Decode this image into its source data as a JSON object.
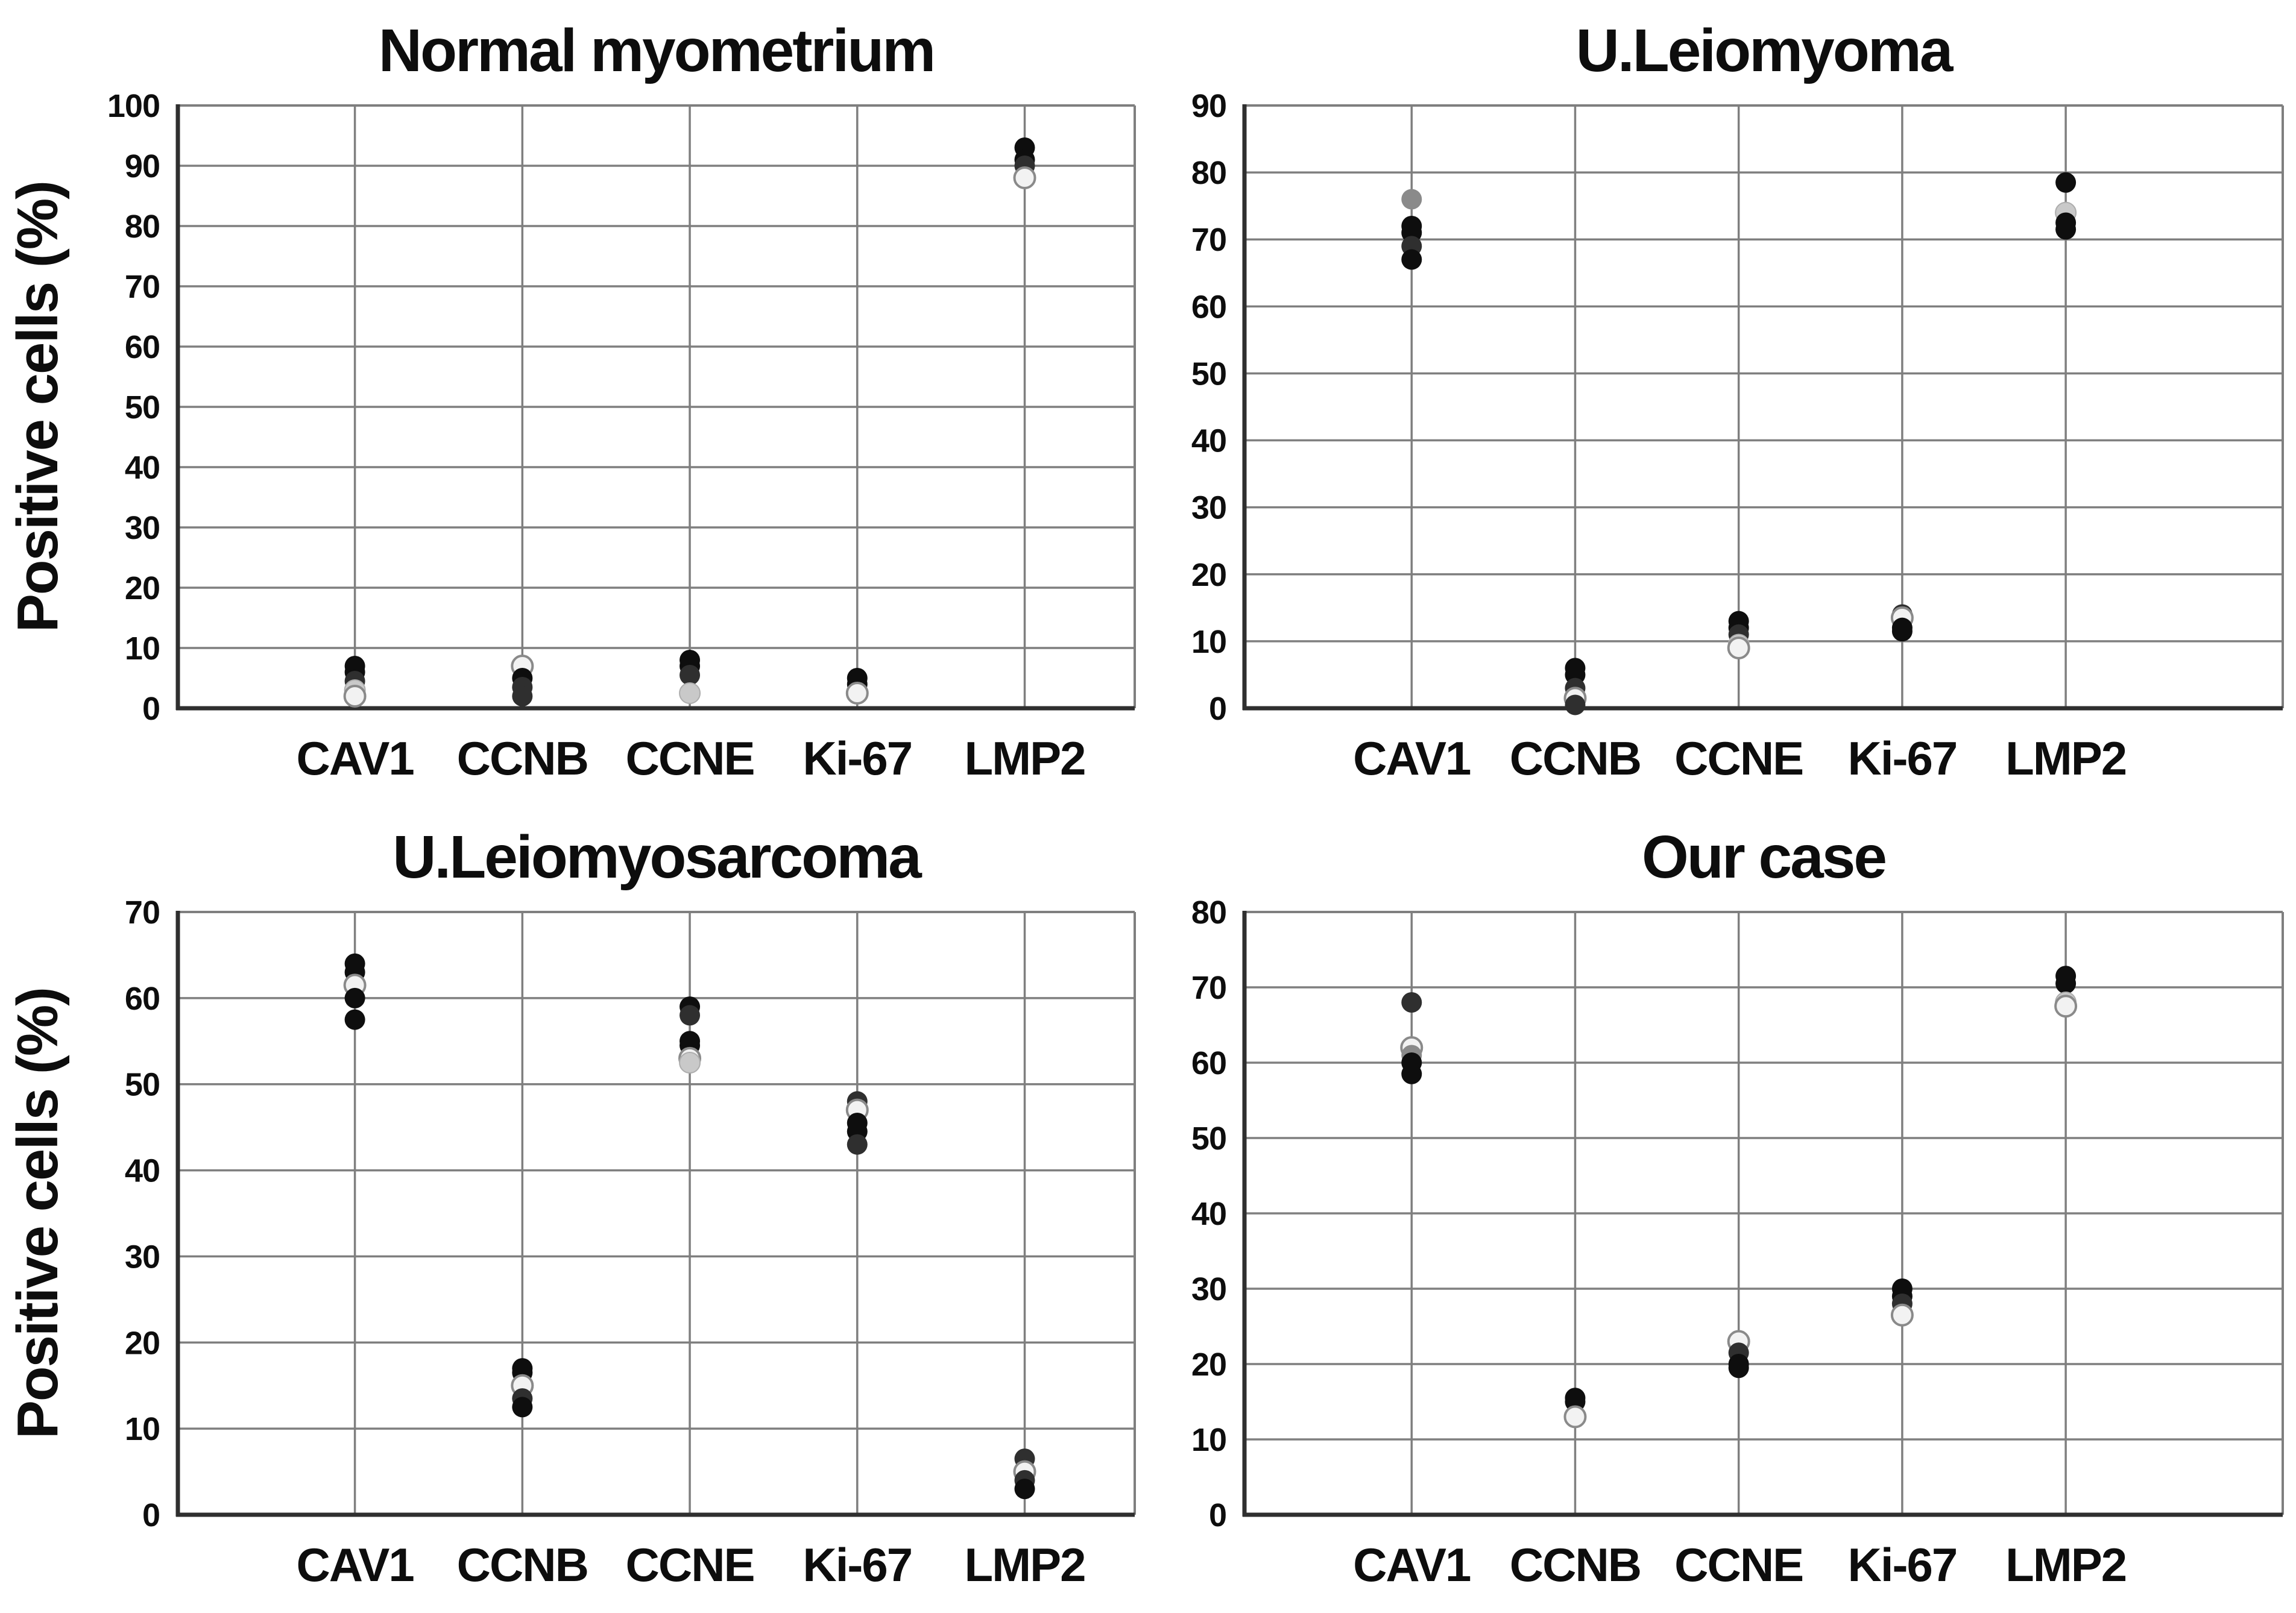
{
  "figure": {
    "ylabel": "Positive cells (%)"
  },
  "palette": {
    "black": "#0e0e0e",
    "dark": "#2f2f2f",
    "gray": "#8a8a8a",
    "light": "#c9c9c9",
    "white": "#f2f2f2",
    "white_stroke": "#8a8a8a",
    "gridline": "#7f7f7f",
    "axis": "#2f2f2f",
    "text": "#0d0d0d"
  },
  "chart_data": [
    {
      "type": "scatter",
      "title": "Normal myometrium",
      "ylabel": "Positive cells (%)",
      "xlabel": "",
      "ylim": [
        0,
        100
      ],
      "ytick_step": 10,
      "yticks": [
        0,
        10,
        20,
        30,
        40,
        50,
        60,
        70,
        80,
        90,
        100
      ],
      "grid": true,
      "legend": "none",
      "categories": [
        "CAV1",
        "CCNB",
        "CCNE",
        "Ki-67",
        "LMP2"
      ],
      "points": {
        "CAV1": [
          [
            7,
            "black"
          ],
          [
            6,
            "black"
          ],
          [
            4.5,
            "dark"
          ],
          [
            3,
            "light"
          ],
          [
            2,
            "white"
          ]
        ],
        "CCNB": [
          [
            7,
            "white"
          ],
          [
            5,
            "black"
          ],
          [
            3.5,
            "dark"
          ],
          [
            2,
            "dark"
          ]
        ],
        "CCNE": [
          [
            8,
            "black"
          ],
          [
            7,
            "black"
          ],
          [
            5.5,
            "dark"
          ],
          [
            2.5,
            "light"
          ]
        ],
        "Ki-67": [
          [
            5,
            "black"
          ],
          [
            4,
            "black"
          ],
          [
            2.5,
            "white"
          ]
        ],
        "LMP2": [
          [
            93,
            "black"
          ],
          [
            91,
            "black"
          ],
          [
            90,
            "dark"
          ],
          [
            88,
            "white"
          ]
        ]
      }
    },
    {
      "type": "scatter",
      "title": "U.Leiomyoma",
      "ylabel": "",
      "xlabel": "",
      "ylim": [
        0,
        90
      ],
      "ytick_step": 10,
      "yticks": [
        0,
        10,
        20,
        30,
        40,
        50,
        60,
        70,
        80,
        90
      ],
      "grid": true,
      "legend": "none",
      "categories": [
        "CAV1",
        "CCNB",
        "CCNE",
        "Ki-67",
        "LMP2"
      ],
      "points": {
        "CAV1": [
          [
            76,
            "gray"
          ],
          [
            72,
            "black"
          ],
          [
            71,
            "black"
          ],
          [
            69,
            "dark"
          ],
          [
            67,
            "black"
          ]
        ],
        "CCNB": [
          [
            6,
            "black"
          ],
          [
            5,
            "black"
          ],
          [
            3,
            "dark"
          ],
          [
            1.5,
            "white"
          ],
          [
            0.5,
            "dark"
          ]
        ],
        "CCNE": [
          [
            13,
            "black"
          ],
          [
            12,
            "black"
          ],
          [
            11,
            "dark"
          ],
          [
            9.5,
            "light"
          ],
          [
            9,
            "white"
          ]
        ],
        "Ki-67": [
          [
            14,
            "dark"
          ],
          [
            13.5,
            "white"
          ],
          [
            12,
            "black"
          ],
          [
            11.5,
            "black"
          ]
        ],
        "LMP2": [
          [
            78.5,
            "black"
          ],
          [
            74,
            "light"
          ],
          [
            72.5,
            "black"
          ],
          [
            71.5,
            "black"
          ]
        ]
      }
    },
    {
      "type": "scatter",
      "title": "U.Leiomyosarcoma",
      "ylabel": "Positive cells (%)",
      "xlabel": "",
      "ylim": [
        0,
        70
      ],
      "ytick_step": 10,
      "yticks": [
        0,
        10,
        20,
        30,
        40,
        50,
        60,
        70
      ],
      "grid": true,
      "legend": "none",
      "categories": [
        "CAV1",
        "CCNB",
        "CCNE",
        "Ki-67",
        "LMP2"
      ],
      "points": {
        "CAV1": [
          [
            64,
            "black"
          ],
          [
            63,
            "black"
          ],
          [
            61.5,
            "white"
          ],
          [
            60,
            "black"
          ],
          [
            57.5,
            "black"
          ]
        ],
        "CCNB": [
          [
            17,
            "black"
          ],
          [
            16.5,
            "black"
          ],
          [
            15,
            "white"
          ],
          [
            13.5,
            "dark"
          ],
          [
            12.5,
            "black"
          ]
        ],
        "CCNE": [
          [
            59,
            "black"
          ],
          [
            58,
            "dark"
          ],
          [
            55,
            "black"
          ],
          [
            54.5,
            "black"
          ],
          [
            53,
            "white"
          ],
          [
            52.5,
            "light"
          ]
        ],
        "Ki-67": [
          [
            48,
            "dark"
          ],
          [
            47,
            "white"
          ],
          [
            45.5,
            "black"
          ],
          [
            44.5,
            "black"
          ],
          [
            43,
            "dark"
          ]
        ],
        "LMP2": [
          [
            6.5,
            "dark"
          ],
          [
            5,
            "white"
          ],
          [
            4,
            "dark"
          ],
          [
            3,
            "black"
          ]
        ]
      }
    },
    {
      "type": "scatter",
      "title": "Our case",
      "ylabel": "",
      "xlabel": "",
      "ylim": [
        0,
        80
      ],
      "ytick_step": 10,
      "yticks": [
        0,
        10,
        20,
        30,
        40,
        50,
        60,
        70,
        80
      ],
      "grid": true,
      "legend": "none",
      "categories": [
        "CAV1",
        "CCNB",
        "CCNE",
        "Ki-67",
        "LMP2"
      ],
      "points": {
        "CAV1": [
          [
            68,
            "dark"
          ],
          [
            62,
            "white"
          ],
          [
            61,
            "gray"
          ],
          [
            60,
            "black"
          ],
          [
            58.5,
            "black"
          ]
        ],
        "CCNB": [
          [
            15.5,
            "black"
          ],
          [
            15,
            "black"
          ],
          [
            13,
            "white"
          ]
        ],
        "CCNE": [
          [
            23,
            "white"
          ],
          [
            21.5,
            "dark"
          ],
          [
            20,
            "black"
          ],
          [
            19.5,
            "black"
          ]
        ],
        "Ki-67": [
          [
            30,
            "black"
          ],
          [
            29,
            "black"
          ],
          [
            28,
            "dark"
          ],
          [
            26.5,
            "white"
          ]
        ],
        "LMP2": [
          [
            71.5,
            "black"
          ],
          [
            70.5,
            "black"
          ],
          [
            68,
            "light"
          ],
          [
            67.5,
            "white"
          ]
        ]
      }
    }
  ]
}
